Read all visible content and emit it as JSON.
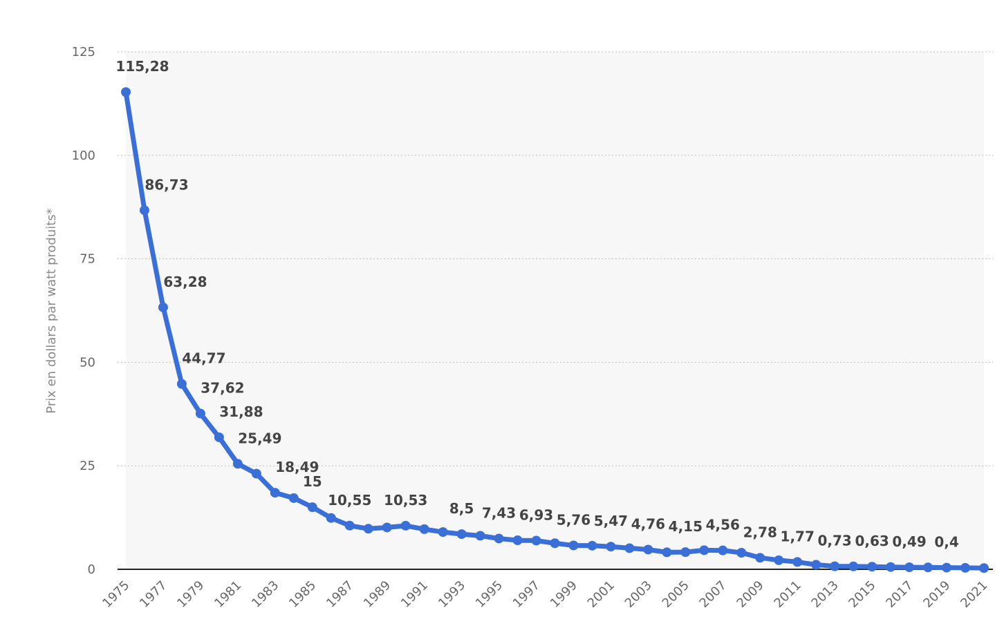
{
  "chart_data": {
    "type": "line",
    "title": "",
    "xlabel": "",
    "ylabel": "Prix en dollars par watt produits*",
    "ylim": [
      0,
      125
    ],
    "yticks": [
      0,
      25,
      50,
      75,
      100,
      125
    ],
    "xlim": [
      1975,
      2021
    ],
    "xticks": [
      "1975",
      "1977",
      "1979",
      "1981",
      "1983",
      "1985",
      "1987",
      "1989",
      "1991",
      "1993",
      "1995",
      "1997",
      "1999",
      "2001",
      "2003",
      "2005",
      "2007",
      "2009",
      "2011",
      "2013",
      "2015",
      "2017",
      "2019",
      "2021"
    ],
    "grid": true,
    "legend": "none",
    "series_color": "#3a6fd8",
    "band_color": "#f7f7f7",
    "x": [
      1975,
      1976,
      1977,
      1978,
      1979,
      1980,
      1981,
      1982,
      1983,
      1984,
      1985,
      1986,
      1987,
      1988,
      1989,
      1990,
      1991,
      1992,
      1993,
      1994,
      1995,
      1996,
      1997,
      1998,
      1999,
      2000,
      2001,
      2002,
      2003,
      2004,
      2005,
      2006,
      2007,
      2008,
      2009,
      2010,
      2011,
      2012,
      2013,
      2014,
      2015,
      2016,
      2017,
      2018,
      2019,
      2020,
      2021
    ],
    "values": [
      115.28,
      86.73,
      63.28,
      44.77,
      37.62,
      31.88,
      25.49,
      23.1,
      18.49,
      17.2,
      15,
      12.4,
      10.55,
      9.8,
      10.1,
      10.53,
      9.7,
      9.0,
      8.5,
      8.1,
      7.43,
      7.0,
      6.93,
      6.3,
      5.76,
      5.7,
      5.47,
      5.1,
      4.76,
      4.1,
      4.15,
      4.6,
      4.56,
      4.0,
      2.78,
      2.2,
      1.77,
      1.1,
      0.73,
      0.7,
      0.63,
      0.55,
      0.49,
      0.45,
      0.4,
      0.35,
      0.3
    ],
    "data_labels": [
      {
        "x": 1975,
        "text": "115,28"
      },
      {
        "x": 1976,
        "text": "86,73"
      },
      {
        "x": 1977,
        "text": "63,28"
      },
      {
        "x": 1978,
        "text": "44,77"
      },
      {
        "x": 1979,
        "text": "37,62"
      },
      {
        "x": 1980,
        "text": "31,88"
      },
      {
        "x": 1981,
        "text": "25,49"
      },
      {
        "x": 1983,
        "text": "18,49"
      },
      {
        "x": 1985,
        "text": "15"
      },
      {
        "x": 1987,
        "text": "10,55"
      },
      {
        "x": 1990,
        "text": "10,53"
      },
      {
        "x": 1993,
        "text": "8,5"
      },
      {
        "x": 1995,
        "text": "7,43"
      },
      {
        "x": 1997,
        "text": "6,93"
      },
      {
        "x": 1999,
        "text": "5,76"
      },
      {
        "x": 2001,
        "text": "5,47"
      },
      {
        "x": 2003,
        "text": "4,76"
      },
      {
        "x": 2005,
        "text": "4,15"
      },
      {
        "x": 2007,
        "text": "4,56"
      },
      {
        "x": 2009,
        "text": "2,78"
      },
      {
        "x": 2011,
        "text": "1,77"
      },
      {
        "x": 2013,
        "text": "0,73"
      },
      {
        "x": 2015,
        "text": "0,63"
      },
      {
        "x": 2017,
        "text": "0,49"
      },
      {
        "x": 2019,
        "text": "0,4"
      }
    ]
  }
}
